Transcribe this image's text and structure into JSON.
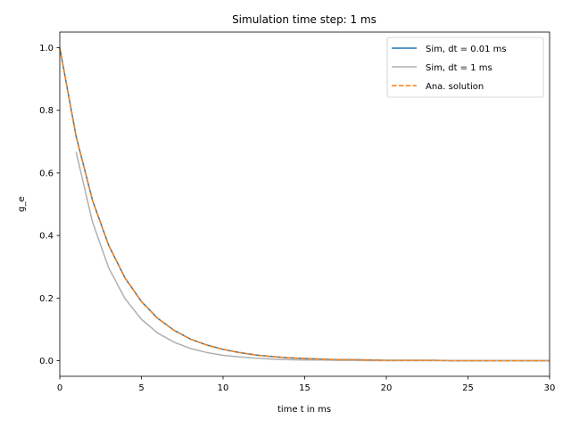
{
  "chart_data": {
    "type": "line",
    "title": "Simulation time step: 1 ms",
    "xlabel": "time t in ms",
    "ylabel": "g_e",
    "xlim": [
      0,
      30
    ],
    "ylim": [
      -0.05,
      1.05
    ],
    "xticks": [
      0,
      5,
      10,
      15,
      20,
      25,
      30
    ],
    "yticks": [
      0.0,
      0.2,
      0.4,
      0.6,
      0.8,
      1.0
    ],
    "xtick_labels": [
      "0",
      "5",
      "10",
      "15",
      "20",
      "25",
      "30"
    ],
    "ytick_labels": [
      "0.0",
      "0.2",
      "0.4",
      "0.6",
      "0.8",
      "1.0"
    ],
    "grid": false,
    "legend_position": "top-right",
    "series": [
      {
        "name": "Sim, dt = 0.01 ms",
        "color": "#1f77b4",
        "style": "solid",
        "x": [
          0,
          1,
          2,
          3,
          4,
          5,
          6,
          7,
          8,
          9,
          10,
          11,
          12,
          13,
          14,
          15,
          16,
          17,
          18,
          19,
          20,
          21,
          22,
          23,
          24,
          25,
          26,
          27,
          28,
          29,
          30
        ],
        "y": [
          1.0,
          0.717,
          0.513,
          0.368,
          0.264,
          0.189,
          0.135,
          0.097,
          0.069,
          0.05,
          0.036,
          0.026,
          0.018,
          0.013,
          0.009,
          0.007,
          0.005,
          0.003,
          0.003,
          0.002,
          0.001,
          0.001,
          0.001,
          0.001,
          0.0,
          0.0,
          0.0,
          0.0,
          0.0,
          0.0,
          0.0
        ]
      },
      {
        "name": "Sim, dt = 1 ms",
        "color": "#b0b0b0",
        "style": "solid",
        "x": [
          1,
          2,
          3,
          4,
          5,
          6,
          7,
          8,
          9,
          10,
          11,
          12,
          13,
          14,
          15,
          16,
          17,
          18,
          19,
          20,
          21,
          22,
          23,
          24,
          25,
          26,
          27,
          28,
          29,
          30
        ],
        "y": [
          0.667,
          0.444,
          0.296,
          0.198,
          0.132,
          0.088,
          0.059,
          0.039,
          0.026,
          0.017,
          0.012,
          0.008,
          0.005,
          0.003,
          0.002,
          0.002,
          0.001,
          0.001,
          0.0,
          0.0,
          0.0,
          0.0,
          0.0,
          0.0,
          0.0,
          0.0,
          0.0,
          0.0,
          0.0,
          0.0
        ]
      },
      {
        "name": "Ana. solution",
        "color": "#ff7f0e",
        "style": "dashed",
        "x": [
          0,
          1,
          2,
          3,
          4,
          5,
          6,
          7,
          8,
          9,
          10,
          11,
          12,
          13,
          14,
          15,
          16,
          17,
          18,
          19,
          20,
          21,
          22,
          23,
          24,
          25,
          26,
          27,
          28,
          29,
          30
        ],
        "y": [
          1.0,
          0.717,
          0.513,
          0.368,
          0.264,
          0.189,
          0.135,
          0.097,
          0.069,
          0.05,
          0.036,
          0.026,
          0.018,
          0.013,
          0.009,
          0.007,
          0.005,
          0.003,
          0.003,
          0.002,
          0.001,
          0.001,
          0.001,
          0.001,
          0.0,
          0.0,
          0.0,
          0.0,
          0.0,
          0.0,
          0.0
        ]
      }
    ]
  }
}
